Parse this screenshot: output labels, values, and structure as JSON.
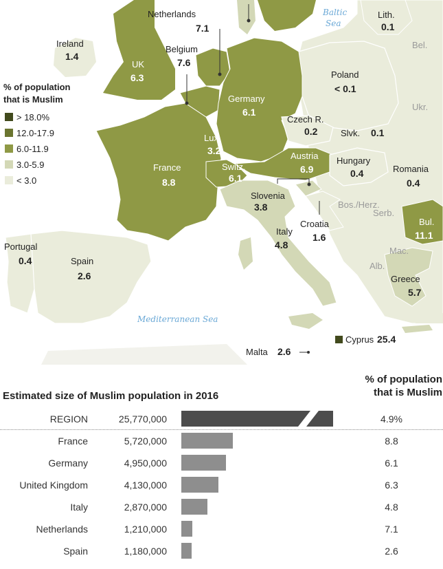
{
  "map": {
    "legend": {
      "title_line1": "% of population",
      "title_line2": "that is Muslim",
      "items": [
        {
          "label": "> 18.0%",
          "color": "#424a1d"
        },
        {
          "label": "12.0-17.9",
          "color": "#6b7530"
        },
        {
          "label": "6.0-11.9",
          "color": "#8f9945"
        },
        {
          "label": "3.0-5.9",
          "color": "#d3d8b6"
        },
        {
          "label": "< 3.0",
          "color": "#eaecdb"
        }
      ]
    },
    "seas": {
      "baltic_line1": "Baltic",
      "baltic_line2": "Sea",
      "mediterranean": "Mediterranean Sea"
    },
    "countries": {
      "netherlands": {
        "name": "Netherlands",
        "value": "7.1"
      },
      "lithuania": {
        "name": "Lith.",
        "value": "0.1"
      },
      "ireland": {
        "name": "Ireland",
        "value": "1.4"
      },
      "belgium": {
        "name": "Belgium",
        "value": "7.6"
      },
      "belarus": {
        "name": "Bel."
      },
      "uk": {
        "name": "UK",
        "value": "6.3"
      },
      "poland": {
        "name": "Poland",
        "value": "< 0.1"
      },
      "germany": {
        "name": "Germany",
        "value": "6.1"
      },
      "ukraine": {
        "name": "Ukr."
      },
      "czech": {
        "name": "Czech R.",
        "value": "0.2"
      },
      "slovakia": {
        "name": "Slvk.",
        "value": "0.1"
      },
      "luxembourg": {
        "name": "Lux.",
        "value": "3.2"
      },
      "austria": {
        "name": "Austria",
        "value": "6.9"
      },
      "hungary": {
        "name": "Hungary",
        "value": "0.4"
      },
      "romania": {
        "name": "Romania",
        "value": "0.4"
      },
      "france": {
        "name": "France",
        "value": "8.8"
      },
      "switzerland": {
        "name": "Switz.",
        "value": "6.1"
      },
      "slovenia": {
        "name": "Slovenia",
        "value": "3.8"
      },
      "bosnia": {
        "name": "Bos./Herz."
      },
      "serbia": {
        "name": "Serb."
      },
      "bulgaria": {
        "name": "Bul.",
        "value": "11.1"
      },
      "croatia": {
        "name": "Croatia",
        "value": "1.6"
      },
      "italy": {
        "name": "Italy",
        "value": "4.8"
      },
      "macedonia": {
        "name": "Mac."
      },
      "portugal": {
        "name": "Portugal",
        "value": "0.4"
      },
      "spain": {
        "name": "Spain",
        "value": "2.6"
      },
      "albania": {
        "name": "Alb."
      },
      "greece": {
        "name": "Greece",
        "value": "5.7"
      },
      "cyprus": {
        "name": "Cyprus",
        "value": "25.4"
      },
      "malta": {
        "name": "Malta",
        "value": "2.6"
      }
    }
  },
  "table": {
    "title": "Estimated size of Muslim population in 2016",
    "pct_header_line1": "% of population",
    "pct_header_line2": "that is Muslim",
    "rows": [
      {
        "name": "REGION",
        "population": "25,770,000",
        "pop_value": 25770000,
        "pct": "4.9%",
        "region": true
      },
      {
        "name": "France",
        "population": "5,720,000",
        "pop_value": 5720000,
        "pct": "8.8"
      },
      {
        "name": "Germany",
        "population": "4,950,000",
        "pop_value": 4950000,
        "pct": "6.1"
      },
      {
        "name": "United Kingdom",
        "population": "4,130,000",
        "pop_value": 4130000,
        "pct": "6.3"
      },
      {
        "name": "Italy",
        "population": "2,870,000",
        "pop_value": 2870000,
        "pct": "4.8"
      },
      {
        "name": "Netherlands",
        "population": "1,210,000",
        "pop_value": 1210000,
        "pct": "7.1"
      },
      {
        "name": "Spain",
        "population": "1,180,000",
        "pop_value": 1180000,
        "pct": "2.6"
      }
    ]
  }
}
